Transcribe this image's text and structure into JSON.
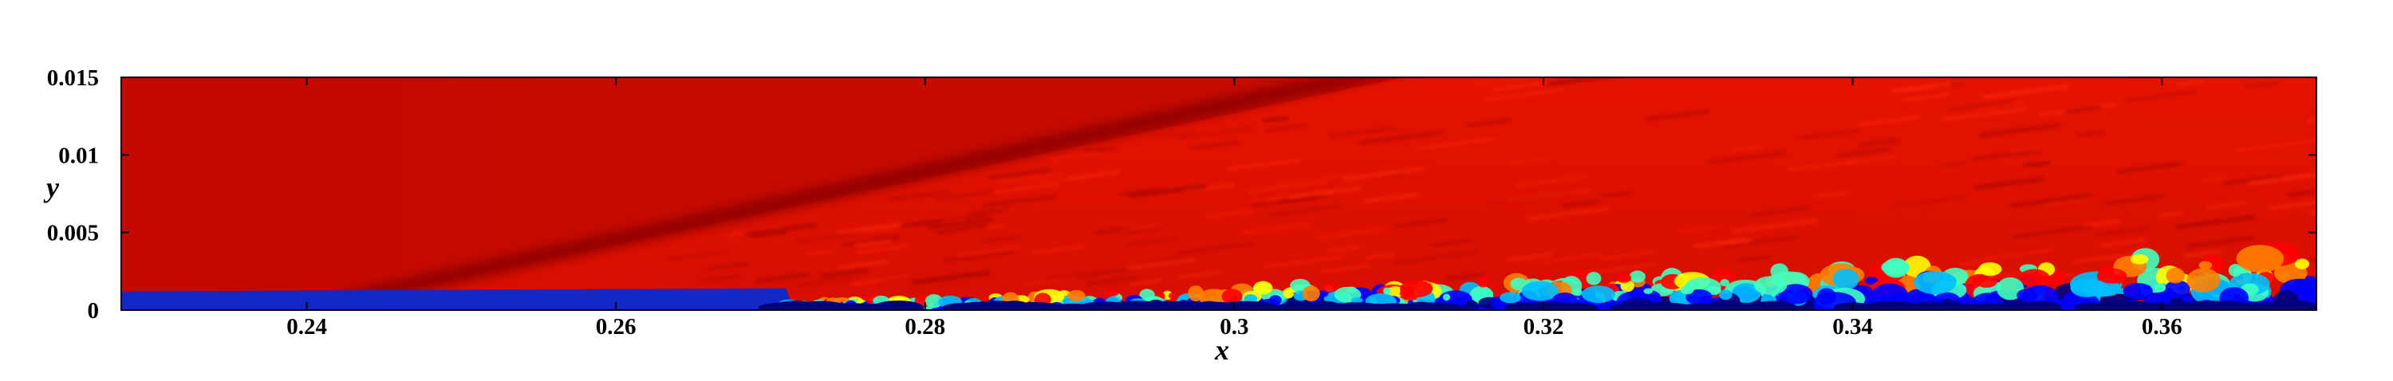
{
  "chart_data": {
    "type": "heatmap",
    "title": "",
    "xlabel": "x",
    "ylabel": "y",
    "xlim": [
      0.228,
      0.37
    ],
    "ylim": [
      0,
      0.015
    ],
    "x_ticks": [
      0.24,
      0.26,
      0.28,
      0.3,
      0.32,
      0.34,
      0.36
    ],
    "x_tick_labels": [
      "0.24",
      "0.26",
      "0.28",
      "0.3",
      "0.32",
      "0.34",
      "0.36"
    ],
    "y_ticks": [
      0,
      0.005,
      0.01,
      0.015
    ],
    "y_tick_labels": [
      "0",
      "0.005",
      "0.01",
      "0.015"
    ],
    "colormap": [
      "#00007f",
      "#0000ff",
      "#00bfff",
      "#40ffbf",
      "#ffff00",
      "#ff8000",
      "#ff0000",
      "#c00000",
      "#7f0000"
    ],
    "colors": {
      "freestream": "#c40a00",
      "shock_band": "#8e0000",
      "post_shock": "#e01200",
      "wall_layer": "#1428c8"
    },
    "grid": false,
    "legend": "none",
    "features": {
      "laminar_layer_end_x": 0.271,
      "laminar_layer_height_y": 0.0012,
      "shock_start": [
        0.24,
        0.0
      ],
      "shock_end": [
        0.31,
        0.0148
      ],
      "turbulent_region_x": [
        0.271,
        0.37
      ],
      "turbulent_max_height_y": 0.0036
    }
  }
}
